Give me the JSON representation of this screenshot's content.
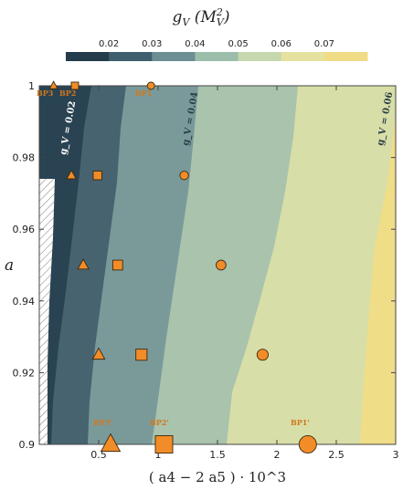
{
  "chart_data": {
    "type": "contour",
    "title": "g_V(M_V^2)",
    "xlabel": "( a4 − 2 a5 ) · 10^3",
    "ylabel": "a",
    "xlim": [
      0.0,
      3.0
    ],
    "ylim": [
      0.9,
      1.0
    ],
    "xticks": [
      "0.5",
      "1",
      "1.5",
      "2",
      "2.5",
      "3"
    ],
    "xtick_values": [
      0.5,
      1.0,
      1.5,
      2.0,
      2.5,
      3.0
    ],
    "yticks": [
      "0.9",
      "0.92",
      "0.94",
      "0.96",
      "0.98",
      "1"
    ],
    "ytick_values": [
      0.9,
      0.92,
      0.94,
      0.96,
      0.98,
      1.0
    ],
    "colorbar": {
      "labels": [
        "0.02",
        "0.03",
        "0.04",
        "0.05",
        "0.06",
        "0.07"
      ],
      "colors": [
        "#243c4b",
        "#3f5f6e",
        "#6b8f93",
        "#9bbdaa",
        "#c6d8ad",
        "#e5e2a0",
        "#f1dc86"
      ]
    },
    "contour_labels": [
      "g_V = 0.02",
      "g_V = 0.04",
      "g_V = 0.06"
    ],
    "benchmark_labels": [
      "BP3",
      "BP2",
      "BP1",
      "BP3'",
      "BP2'",
      "BP1'"
    ],
    "series": [
      {
        "marker": "triangle",
        "points": [
          {
            "x": 0.12,
            "y": 1.0
          },
          {
            "x": 0.27,
            "y": 0.975
          },
          {
            "x": 0.37,
            "y": 0.95
          },
          {
            "x": 0.5,
            "y": 0.925
          },
          {
            "x": 0.6,
            "y": 0.9
          }
        ]
      },
      {
        "marker": "square",
        "points": [
          {
            "x": 0.3,
            "y": 1.0
          },
          {
            "x": 0.49,
            "y": 0.975
          },
          {
            "x": 0.66,
            "y": 0.95
          },
          {
            "x": 0.86,
            "y": 0.925
          },
          {
            "x": 1.05,
            "y": 0.9
          }
        ]
      },
      {
        "marker": "circle",
        "points": [
          {
            "x": 0.94,
            "y": 1.0
          },
          {
            "x": 1.22,
            "y": 0.975
          },
          {
            "x": 1.53,
            "y": 0.95
          },
          {
            "x": 1.88,
            "y": 0.925
          },
          {
            "x": 2.26,
            "y": 0.9
          }
        ]
      }
    ],
    "marker_color": "#f28c28"
  }
}
